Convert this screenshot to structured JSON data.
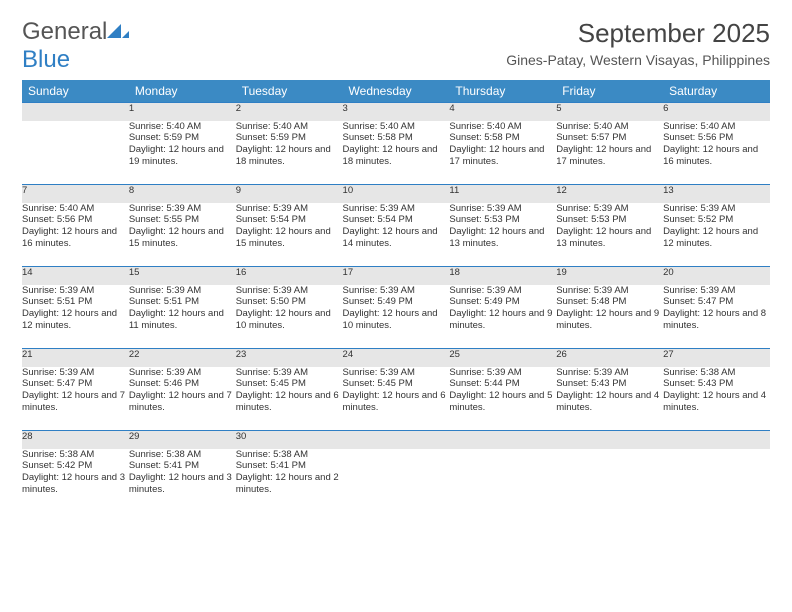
{
  "brand": {
    "name_a": "General",
    "name_b": "Blue"
  },
  "title": "September 2025",
  "location": "Gines-Patay, Western Visayas, Philippines",
  "colors": {
    "header_bg": "#3b8ac4",
    "header_text": "#ffffff",
    "daynum_bg": "#e6e6e6",
    "row_border": "#2f7fc4",
    "text": "#333333",
    "logo_blue": "#2f7fc4",
    "logo_gray": "#555555"
  },
  "day_headers": [
    "Sunday",
    "Monday",
    "Tuesday",
    "Wednesday",
    "Thursday",
    "Friday",
    "Saturday"
  ],
  "weeks": [
    {
      "nums": [
        "",
        "1",
        "2",
        "3",
        "4",
        "5",
        "6"
      ],
      "cells": [
        "",
        "Sunrise: 5:40 AM\nSunset: 5:59 PM\nDaylight: 12 hours and 19 minutes.",
        "Sunrise: 5:40 AM\nSunset: 5:59 PM\nDaylight: 12 hours and 18 minutes.",
        "Sunrise: 5:40 AM\nSunset: 5:58 PM\nDaylight: 12 hours and 18 minutes.",
        "Sunrise: 5:40 AM\nSunset: 5:58 PM\nDaylight: 12 hours and 17 minutes.",
        "Sunrise: 5:40 AM\nSunset: 5:57 PM\nDaylight: 12 hours and 17 minutes.",
        "Sunrise: 5:40 AM\nSunset: 5:56 PM\nDaylight: 12 hours and 16 minutes."
      ]
    },
    {
      "nums": [
        "7",
        "8",
        "9",
        "10",
        "11",
        "12",
        "13"
      ],
      "cells": [
        "Sunrise: 5:40 AM\nSunset: 5:56 PM\nDaylight: 12 hours and 16 minutes.",
        "Sunrise: 5:39 AM\nSunset: 5:55 PM\nDaylight: 12 hours and 15 minutes.",
        "Sunrise: 5:39 AM\nSunset: 5:54 PM\nDaylight: 12 hours and 15 minutes.",
        "Sunrise: 5:39 AM\nSunset: 5:54 PM\nDaylight: 12 hours and 14 minutes.",
        "Sunrise: 5:39 AM\nSunset: 5:53 PM\nDaylight: 12 hours and 13 minutes.",
        "Sunrise: 5:39 AM\nSunset: 5:53 PM\nDaylight: 12 hours and 13 minutes.",
        "Sunrise: 5:39 AM\nSunset: 5:52 PM\nDaylight: 12 hours and 12 minutes."
      ]
    },
    {
      "nums": [
        "14",
        "15",
        "16",
        "17",
        "18",
        "19",
        "20"
      ],
      "cells": [
        "Sunrise: 5:39 AM\nSunset: 5:51 PM\nDaylight: 12 hours and 12 minutes.",
        "Sunrise: 5:39 AM\nSunset: 5:51 PM\nDaylight: 12 hours and 11 minutes.",
        "Sunrise: 5:39 AM\nSunset: 5:50 PM\nDaylight: 12 hours and 10 minutes.",
        "Sunrise: 5:39 AM\nSunset: 5:49 PM\nDaylight: 12 hours and 10 minutes.",
        "Sunrise: 5:39 AM\nSunset: 5:49 PM\nDaylight: 12 hours and 9 minutes.",
        "Sunrise: 5:39 AM\nSunset: 5:48 PM\nDaylight: 12 hours and 9 minutes.",
        "Sunrise: 5:39 AM\nSunset: 5:47 PM\nDaylight: 12 hours and 8 minutes."
      ]
    },
    {
      "nums": [
        "21",
        "22",
        "23",
        "24",
        "25",
        "26",
        "27"
      ],
      "cells": [
        "Sunrise: 5:39 AM\nSunset: 5:47 PM\nDaylight: 12 hours and 7 minutes.",
        "Sunrise: 5:39 AM\nSunset: 5:46 PM\nDaylight: 12 hours and 7 minutes.",
        "Sunrise: 5:39 AM\nSunset: 5:45 PM\nDaylight: 12 hours and 6 minutes.",
        "Sunrise: 5:39 AM\nSunset: 5:45 PM\nDaylight: 12 hours and 6 minutes.",
        "Sunrise: 5:39 AM\nSunset: 5:44 PM\nDaylight: 12 hours and 5 minutes.",
        "Sunrise: 5:39 AM\nSunset: 5:43 PM\nDaylight: 12 hours and 4 minutes.",
        "Sunrise: 5:38 AM\nSunset: 5:43 PM\nDaylight: 12 hours and 4 minutes."
      ]
    },
    {
      "nums": [
        "28",
        "29",
        "30",
        "",
        "",
        "",
        ""
      ],
      "cells": [
        "Sunrise: 5:38 AM\nSunset: 5:42 PM\nDaylight: 12 hours and 3 minutes.",
        "Sunrise: 5:38 AM\nSunset: 5:41 PM\nDaylight: 12 hours and 3 minutes.",
        "Sunrise: 5:38 AM\nSunset: 5:41 PM\nDaylight: 12 hours and 2 minutes.",
        "",
        "",
        "",
        ""
      ]
    }
  ]
}
